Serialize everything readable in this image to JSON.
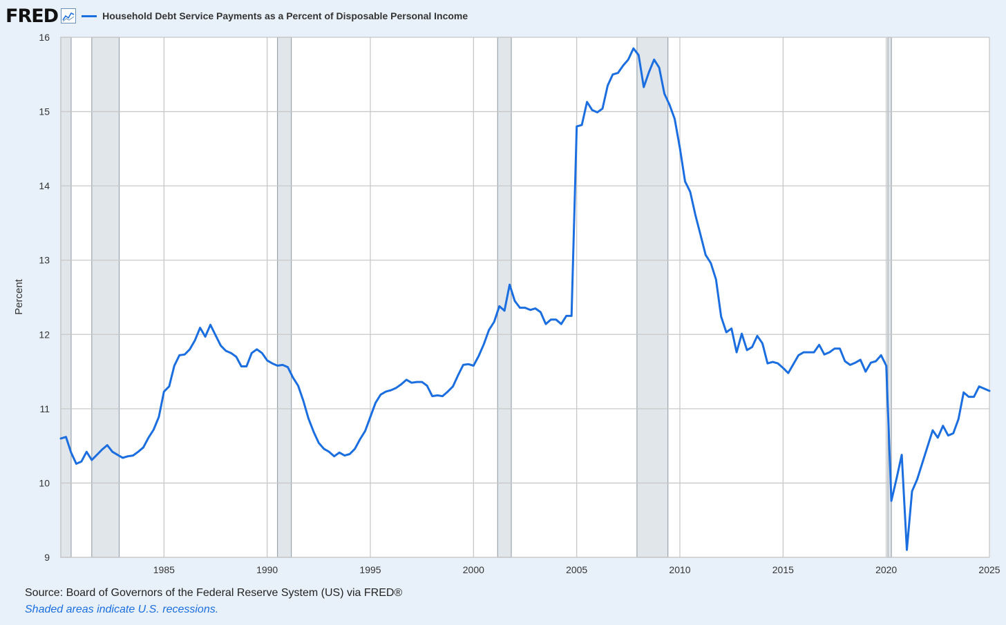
{
  "header": {
    "logo_text": "FRED",
    "logo_icon": "fred-chart-icon"
  },
  "footer": {
    "source": "Source: Board of Governors of the Federal Reserve System (US) via FRED®",
    "note": "Shaded areas indicate U.S. recessions."
  },
  "colors": {
    "line": "#1b6ee0",
    "recession": "#e1e6ea",
    "grid": "#c8c8c8",
    "page_background": "#e8f1f9",
    "plot_background": "#ffffff"
  },
  "chart_data": {
    "type": "line",
    "title": "Household Debt Service Payments as a Percent of Disposable Personal Income",
    "xlabel": "",
    "ylabel": "Percent",
    "xlim": [
      1980,
      2025.0
    ],
    "ylim": [
      9,
      16
    ],
    "y_ticks": [
      9,
      10,
      11,
      12,
      13,
      14,
      15,
      16
    ],
    "x_ticks": [
      1985,
      1990,
      1995,
      2000,
      2005,
      2010,
      2015,
      2020,
      2025
    ],
    "grid": true,
    "legend_position": "top-left",
    "recessions": [
      [
        1980.0,
        1980.5
      ],
      [
        1981.5,
        1982.83
      ],
      [
        1990.5,
        1991.17
      ],
      [
        2001.17,
        2001.83
      ],
      [
        2007.92,
        2009.42
      ],
      [
        2020.08,
        2020.25
      ]
    ],
    "series": [
      {
        "name": "Household Debt Service Payments as a Percent of Disposable Personal Income",
        "x": [
          1980.0,
          1980.25,
          1980.5,
          1980.75,
          1981.0,
          1981.25,
          1981.5,
          1981.75,
          1982.0,
          1982.25,
          1982.5,
          1982.75,
          1983.0,
          1983.25,
          1983.5,
          1983.75,
          1984.0,
          1984.25,
          1984.5,
          1984.75,
          1985.0,
          1985.25,
          1985.5,
          1985.75,
          1986.0,
          1986.25,
          1986.5,
          1986.75,
          1987.0,
          1987.25,
          1987.5,
          1987.75,
          1988.0,
          1988.25,
          1988.5,
          1988.75,
          1989.0,
          1989.25,
          1989.5,
          1989.75,
          1990.0,
          1990.25,
          1990.5,
          1990.75,
          1991.0,
          1991.25,
          1991.5,
          1991.75,
          1992.0,
          1992.25,
          1992.5,
          1992.75,
          1993.0,
          1993.25,
          1993.5,
          1993.75,
          1994.0,
          1994.25,
          1994.5,
          1994.75,
          1995.0,
          1995.25,
          1995.5,
          1995.75,
          1996.0,
          1996.25,
          1996.5,
          1996.75,
          1997.0,
          1997.25,
          1997.5,
          1997.75,
          1998.0,
          1998.25,
          1998.5,
          1998.75,
          1999.0,
          1999.25,
          1999.5,
          1999.75,
          2000.0,
          2000.25,
          2000.5,
          2000.75,
          2001.0,
          2001.25,
          2001.5,
          2001.75,
          2002.0,
          2002.25,
          2002.5,
          2002.75,
          2003.0,
          2003.25,
          2003.5,
          2003.75,
          2004.0,
          2004.25,
          2004.5,
          2004.75,
          2005.0,
          2005.25,
          2005.5,
          2005.75,
          2006.0,
          2006.25,
          2006.5,
          2006.75,
          2007.0,
          2007.25,
          2007.5,
          2007.75,
          2008.0,
          2008.25,
          2008.5,
          2008.75,
          2009.0,
          2009.25,
          2009.5,
          2009.75,
          2010.0,
          2010.25,
          2010.5,
          2010.75,
          2011.0,
          2011.25,
          2011.5,
          2011.75,
          2012.0,
          2012.25,
          2012.5,
          2012.75,
          2013.0,
          2013.25,
          2013.5,
          2013.75,
          2014.0,
          2014.25,
          2014.5,
          2014.75,
          2015.0,
          2015.25,
          2015.5,
          2015.75,
          2016.0,
          2016.25,
          2016.5,
          2016.75,
          2017.0,
          2017.25,
          2017.5,
          2017.75,
          2018.0,
          2018.25,
          2018.5,
          2018.75,
          2019.0,
          2019.25,
          2019.5,
          2019.75,
          2020.0,
          2020.25,
          2020.5,
          2020.75,
          2021.0,
          2021.25,
          2021.5,
          2021.75,
          2022.0,
          2022.25,
          2022.5,
          2022.75,
          2023.0,
          2023.25,
          2023.5,
          2023.75,
          2024.0,
          2024.25,
          2024.5,
          2024.75,
          2025.0
        ],
        "values": [
          10.6,
          10.62,
          10.41,
          10.26,
          10.29,
          10.42,
          10.31,
          10.38,
          10.45,
          10.51,
          10.42,
          10.38,
          10.34,
          10.36,
          10.37,
          10.42,
          10.48,
          10.61,
          10.72,
          10.89,
          11.23,
          11.3,
          11.58,
          11.72,
          11.73,
          11.8,
          11.92,
          12.09,
          11.97,
          12.13,
          11.99,
          11.85,
          11.78,
          11.75,
          11.7,
          11.57,
          11.57,
          11.75,
          11.8,
          11.75,
          11.65,
          11.61,
          11.58,
          11.59,
          11.56,
          11.42,
          11.31,
          11.11,
          10.87,
          10.69,
          10.54,
          10.46,
          10.42,
          10.36,
          10.41,
          10.37,
          10.39,
          10.46,
          10.59,
          10.7,
          10.89,
          11.08,
          11.19,
          11.23,
          11.25,
          11.28,
          11.33,
          11.39,
          11.35,
          11.36,
          11.36,
          11.31,
          11.17,
          11.18,
          11.17,
          11.23,
          11.3,
          11.45,
          11.59,
          11.6,
          11.58,
          11.71,
          11.87,
          12.06,
          12.17,
          12.38,
          12.32,
          12.67,
          12.45,
          12.36,
          12.36,
          12.33,
          12.35,
          12.3,
          12.14,
          12.2,
          12.2,
          12.14,
          12.25,
          12.25,
          14.8,
          14.82,
          15.13,
          15.02,
          14.99,
          15.04,
          15.35,
          15.5,
          15.52,
          15.62,
          15.7,
          15.85,
          15.76,
          15.33,
          15.53,
          15.7,
          15.59,
          15.24,
          15.09,
          14.9,
          14.51,
          14.06,
          13.92,
          13.61,
          13.34,
          13.07,
          12.96,
          12.74,
          12.24,
          12.03,
          12.08,
          11.76,
          12.01,
          11.79,
          11.83,
          11.98,
          11.88,
          11.61,
          11.63,
          11.61,
          11.55,
          11.48,
          11.6,
          11.72,
          11.76,
          11.76,
          11.76,
          11.86,
          11.73,
          11.76,
          11.81,
          11.81,
          11.64,
          11.59,
          11.62,
          11.66,
          11.5,
          11.62,
          11.64,
          11.72,
          11.58,
          9.76,
          10.06,
          10.38,
          9.1,
          9.89,
          10.05,
          10.27,
          10.49,
          10.71,
          10.61,
          10.77,
          10.64,
          10.67,
          10.86,
          11.22,
          11.16,
          11.16,
          11.3,
          11.27,
          11.24
        ]
      }
    ]
  }
}
